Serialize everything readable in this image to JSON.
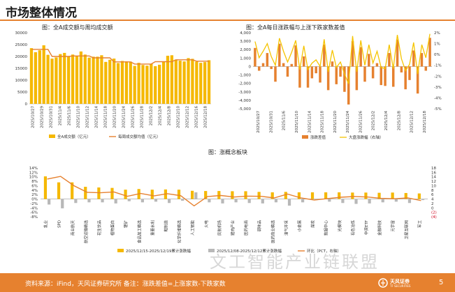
{
  "page": {
    "title": "市场整体情况",
    "footer_source": "资料来源：iFind，天风证券研究所  备注：涨跌差值=上涨家数-下跌家数",
    "page_number": "5",
    "logo_text": "天风证券",
    "logo_sub": "TF SECURITIES",
    "watermark": "文工智能产业链联盟",
    "brand_color": "#e6812f"
  },
  "chart_data": [
    {
      "type": "bar+line",
      "title": "图：全A成交额与周均成交额",
      "ylim": [
        0,
        30000
      ],
      "yticks": [
        "0",
        "5000",
        "10000",
        "15000",
        "20000",
        "25000",
        "30000"
      ],
      "xtick_labels": [
        "2025/10/27",
        "2025/10/29",
        "2025/10/31",
        "2025/11/4",
        "2025/11/6",
        "2025/11/10",
        "2025/11/12",
        "2025/11/14",
        "2025/11/18",
        "2025/11/20",
        "2025/11/24",
        "2025/11/26",
        "2025/11/28",
        "2025/12/2",
        "2025/12/4",
        "2025/12/8",
        "2025/12/10",
        "2025/12/12",
        "2025/12/16",
        "2025/12/18"
      ],
      "series": [
        {
          "name": "全A成交额（亿元）",
          "kind": "bar",
          "color": "#f5b800",
          "values": [
            23500,
            21800,
            22600,
            24700,
            20700,
            19100,
            19600,
            21000,
            21500,
            19900,
            20800,
            20300,
            22100,
            20800,
            19500,
            19900,
            19900,
            20500,
            17700,
            18600,
            19100,
            17200,
            18100,
            17900,
            17800,
            16000,
            17300,
            16400,
            16100,
            16900,
            15900,
            16500,
            17900,
            20300,
            20500,
            18700,
            18200,
            17900,
            19300,
            19000,
            17800,
            17300,
            17600,
            18400
          ]
        },
        {
          "name": "每周成交额均值（亿元）",
          "kind": "line",
          "color": "#e6812f",
          "values": [
            23000,
            23000,
            23000,
            23000,
            23000,
            20000,
            20000,
            20000,
            20000,
            20000,
            20200,
            20200,
            20200,
            20200,
            20200,
            19400,
            19400,
            19400,
            19400,
            19400,
            17700,
            17700,
            17700,
            17700,
            17700,
            16800,
            16800,
            16800,
            16800,
            16800,
            17800,
            17800,
            17800,
            17800,
            17800,
            18600,
            18600,
            18600,
            18600,
            18600,
            18000,
            18000,
            18000,
            18000
          ]
        }
      ]
    },
    {
      "type": "bar+line",
      "title": "图：全A每日涨跌幅与上涨下跌家数差值",
      "ylim_left": [
        -5000,
        4000
      ],
      "ylim_right": [
        -5,
        2
      ],
      "yticks_left": [
        "4,000",
        "3,000",
        "2,000",
        "1,000",
        "0",
        "-1,000",
        "-2,000",
        "-3,000",
        "-4,000",
        "-5,000"
      ],
      "yticks_right": [
        "2%",
        "1%",
        "0%",
        "-1%",
        "-2%",
        "-3%",
        "-4%",
        "-5%"
      ],
      "xtick_labels": [
        "2025/10/27",
        "2025/10/31",
        "2025/11/6",
        "2025/11/10",
        "2025/11/14",
        "2025/11/18",
        "2025/11/20",
        "2025/11/24",
        "2025/11/26",
        "2025/12/2",
        "2025/12/4",
        "2025/12/8",
        "2025/12/12",
        "2025/12/18"
      ],
      "series": [
        {
          "name": "涨跌差值",
          "kind": "bar",
          "color": "#e6812f",
          "values": [
            2200,
            -500,
            400,
            1600,
            -300,
            -1800,
            2700,
            400,
            -1200,
            300,
            2500,
            -2500,
            1200,
            -2500,
            -1400,
            -800,
            -1900,
            2600,
            -2800,
            600,
            -2100,
            -1200,
            -3000,
            -4500,
            3000,
            -2800,
            2300,
            -1800,
            1500,
            -1400,
            400,
            -2200,
            -2300,
            1600,
            -2400,
            3200,
            -700,
            -2700,
            -1600,
            1900,
            -3200,
            1600,
            -500,
            3400
          ]
        },
        {
          "name": "大盘涨跌幅（右轴）",
          "kind": "line",
          "color": "#f5c400",
          "values": [
            1.2,
            -0.3,
            0.3,
            1.0,
            -0.2,
            -1.0,
            1.5,
            0.3,
            -0.7,
            0.2,
            1.3,
            -1.4,
            0.8,
            -1.4,
            -0.8,
            -0.5,
            -1.1,
            1.4,
            -1.6,
            0.4,
            -1.2,
            -0.7,
            -1.8,
            -2.7,
            1.7,
            -1.6,
            1.3,
            -1.0,
            0.9,
            -0.8,
            0.3,
            -1.2,
            -1.3,
            0.9,
            -1.3,
            1.8,
            -0.4,
            -1.5,
            -0.9,
            1.1,
            -1.8,
            0.9,
            -0.3,
            1.9
          ]
        }
      ]
    },
    {
      "type": "bar+line",
      "title": "图：涨概念板块",
      "ylim_left": [
        -8,
        14
      ],
      "ylim_right": [
        -4,
        18
      ],
      "yticks_left": [
        "14%",
        "12%",
        "10%",
        "8%",
        "6%",
        "4%",
        "2%",
        "0%",
        "-2%",
        "-4%",
        "-6%",
        "-8%"
      ],
      "yticks_right": [
        "18",
        "16",
        "14",
        "12",
        "10",
        "8",
        "6",
        "4",
        "2",
        "0",
        "(2)",
        "(4)"
      ],
      "categories": [
        "乳业",
        "SPD",
        "商业航天",
        "航空运输精选",
        "花生饮品",
        "植物蛋白",
        "锂矿",
        "食品加工精选",
        "重要水利",
        "鞋制造",
        "化学纤维精选",
        "人工智能",
        "火电",
        "民航机场",
        "猪肉产业",
        "医药电商",
        "调味品",
        "医药商业精选",
        "油气开采",
        "小金属",
        "煤炭",
        "数据中心",
        "光模块",
        "有色冶炼",
        "中资ETF",
        "金融科技",
        "元宇宙",
        "卫星互联网",
        "军工"
      ],
      "series": [
        {
          "name": "2025/12/15-2025/12/19累计涨跌幅",
          "kind": "bar",
          "color": "#f5b800",
          "values": [
            10.2,
            7.5,
            7.5,
            5.5,
            5.2,
            5.0,
            4.2,
            4.5,
            4.2,
            4.3,
            4.2,
            3.7,
            3.6,
            3.6,
            3.5,
            3.5,
            3.2,
            3.0,
            3.2,
            3.0,
            3.0,
            3.0,
            3.0,
            2.9,
            2.9,
            2.8,
            2.9,
            2.7,
            2.5
          ]
        },
        {
          "name": "2025/12/08-2025/12/12累计涨跌幅",
          "kind": "bar",
          "color": "#b8b8b8",
          "values": [
            -2.5,
            -4.2,
            -1.8,
            -1.5,
            -1.5,
            -2.0,
            -1.0,
            -1.5,
            -1.2,
            -1.8,
            -0.8,
            3.0,
            -1.5,
            -2.0,
            -1.5,
            -1.8,
            -2.0,
            -1.5,
            -3.0,
            -1.5,
            -0.5,
            -1.2,
            -1.8,
            -2.2,
            -2.0,
            -1.5,
            -1.2,
            -1.8,
            -0.5
          ]
        },
        {
          "name": "环比（PCT，右轴）",
          "kind": "line",
          "color": "#e6812f",
          "values": [
            13.0,
            14.2,
            10.0,
            7.0,
            6.8,
            7.2,
            5.2,
            6.5,
            5.4,
            6.4,
            5.5,
            0.9,
            5.1,
            5.6,
            4.9,
            5.3,
            5.2,
            4.5,
            6.2,
            4.5,
            3.5,
            4.2,
            4.8,
            5.1,
            4.9,
            4.3,
            4.1,
            4.5,
            3.3
          ]
        }
      ]
    }
  ]
}
